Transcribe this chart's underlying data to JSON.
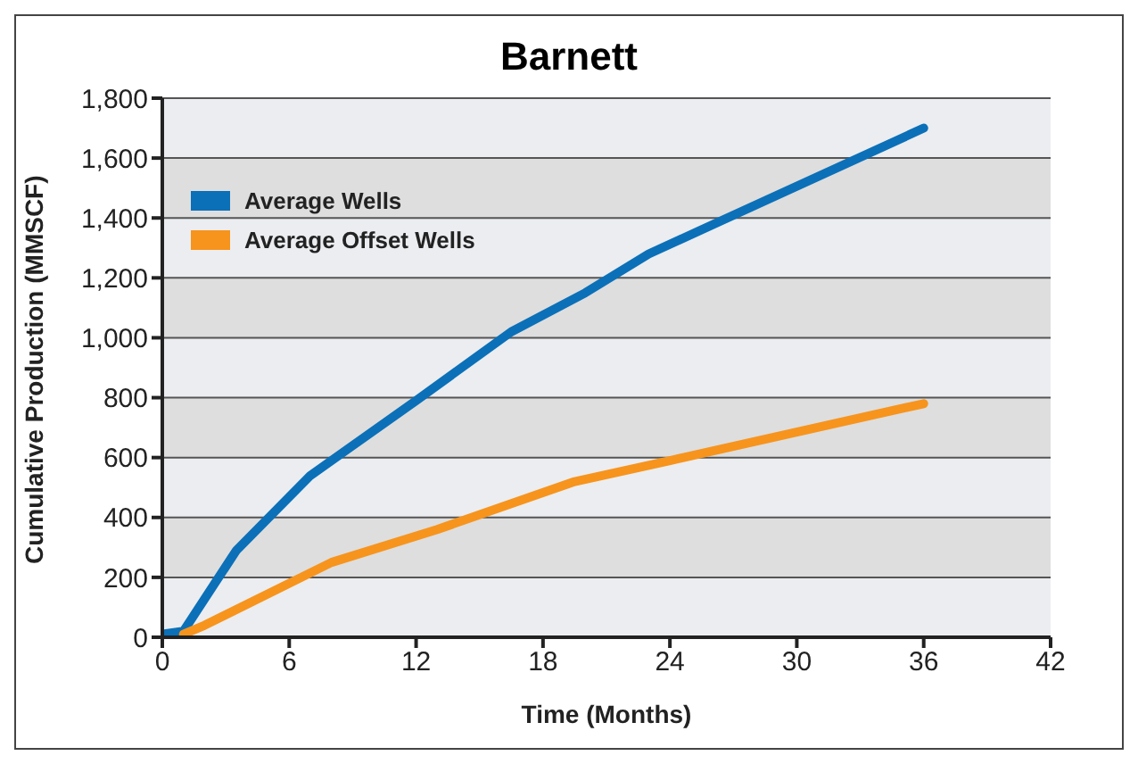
{
  "chart_data": {
    "type": "line",
    "title": "Barnett",
    "xlabel": "Time (Months)",
    "ylabel": "Cumulative Production (MMSCF)",
    "xlim": [
      0,
      42
    ],
    "xticks": [
      0,
      6,
      12,
      18,
      24,
      30,
      36,
      42
    ],
    "ylim": [
      0,
      1800
    ],
    "yticks": [
      {
        "value": 0,
        "label": "0"
      },
      {
        "value": 200,
        "label": "200"
      },
      {
        "value": 400,
        "label": "400"
      },
      {
        "value": 600,
        "label": "600"
      },
      {
        "value": 800,
        "label": "800"
      },
      {
        "value": 1000,
        "label": "1,000"
      },
      {
        "value": 1200,
        "label": "1,200"
      },
      {
        "value": 1400,
        "label": "1,400"
      },
      {
        "value": 1600,
        "label": "1,600"
      },
      {
        "value": 1800,
        "label": "1,800"
      }
    ],
    "grid": "y",
    "legend": "top left",
    "marker": "none",
    "line_style": "solid",
    "series": [
      {
        "name": "Average Wells",
        "color": "#0b70b8",
        "x": [
          0,
          1,
          3.5,
          7,
          12,
          16.5,
          20,
          23,
          36
        ],
        "values": [
          10,
          20,
          290,
          540,
          790,
          1020,
          1150,
          1280,
          1700
        ]
      },
      {
        "name": "Average Offset Wells",
        "color": "#f7941d",
        "x": [
          1,
          2,
          8,
          13,
          19.5,
          24,
          36
        ],
        "values": [
          10,
          40,
          250,
          360,
          520,
          590,
          780
        ]
      }
    ]
  }
}
